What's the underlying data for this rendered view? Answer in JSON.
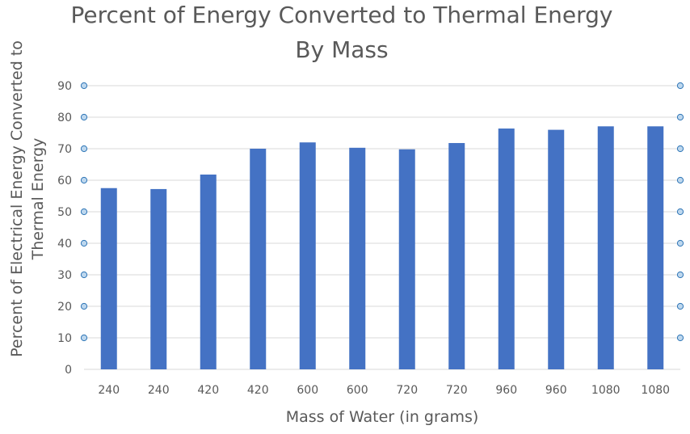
{
  "chart_data": {
    "type": "bar",
    "title_lines": [
      "Percent of Energy Converted to Thermal Energy",
      "By Mass"
    ],
    "xlabel": "Mass of Water (in grams)",
    "ylabel_lines": [
      "Percent of Electrical Energy Converted to",
      "Thermal Energy"
    ],
    "categories": [
      "240",
      "240",
      "420",
      "420",
      "600",
      "600",
      "720",
      "720",
      "960",
      "960",
      "1080",
      "1080"
    ],
    "values": [
      57.5,
      57.2,
      61.8,
      70.0,
      72.0,
      70.3,
      69.8,
      71.8,
      76.4,
      76.0,
      77.1,
      77.1
    ],
    "ylim": [
      0,
      90
    ],
    "yticks": [
      "0",
      "10",
      "20",
      "30",
      "40",
      "50",
      "60",
      "70",
      "80",
      "90"
    ],
    "grid": true,
    "legend": "none",
    "colors": {
      "bar": "#4472C4",
      "grid": "#D9D9D9",
      "text": "#595959",
      "handle_fill": "#BDD7EE",
      "handle_stroke": "#2E75B6"
    }
  }
}
